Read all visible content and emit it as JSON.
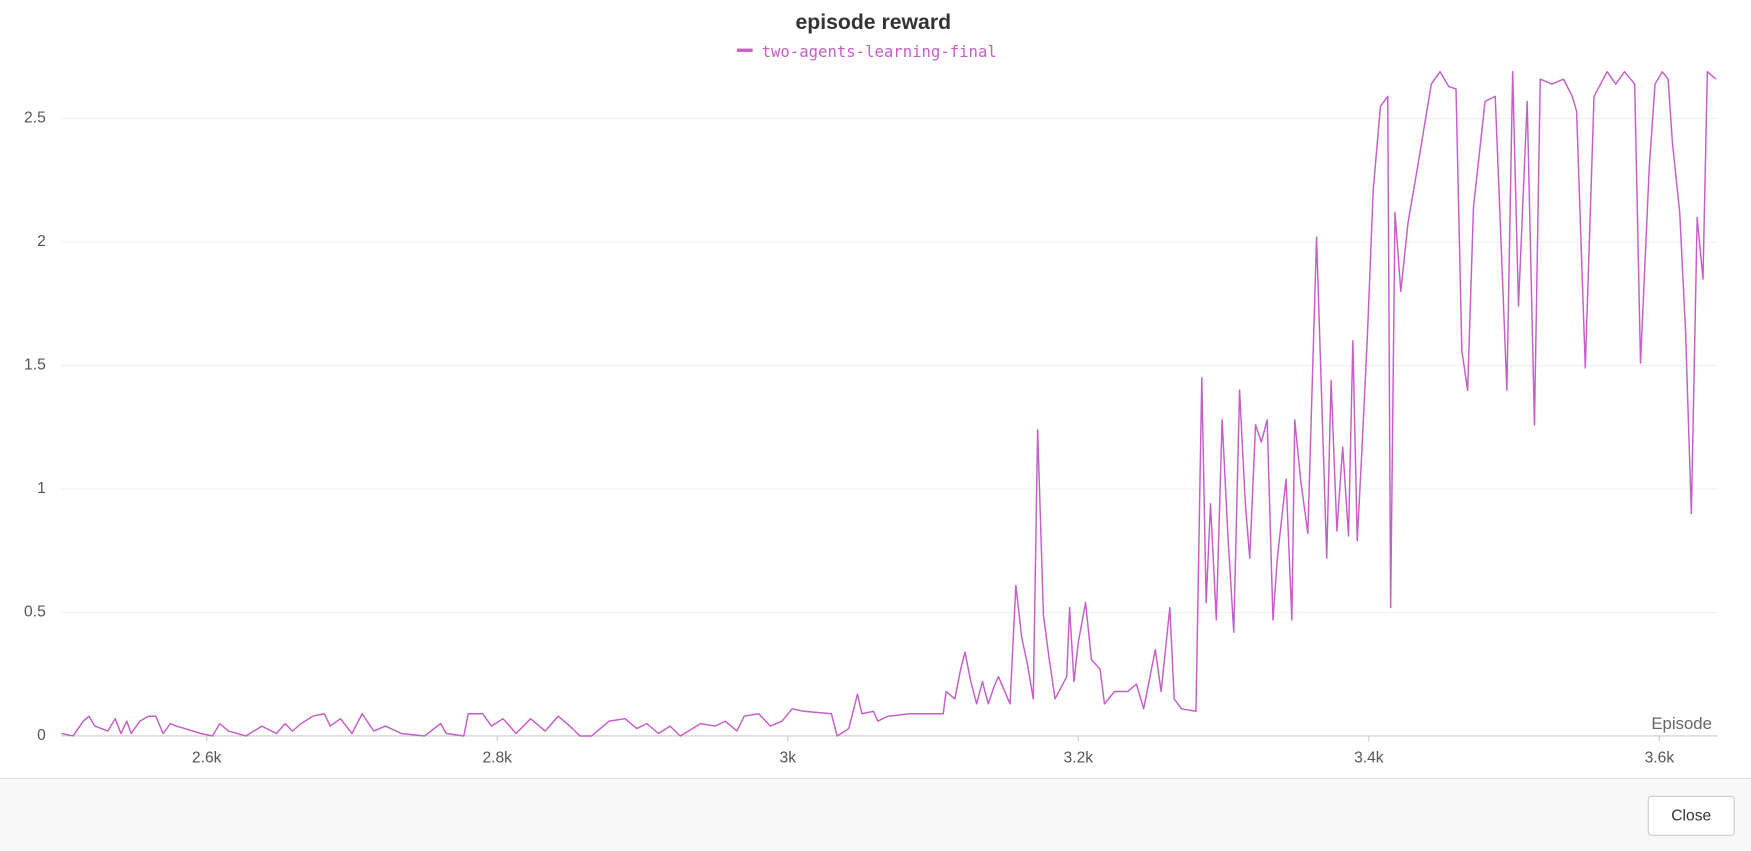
{
  "chart_data": {
    "type": "line",
    "title": "episode reward",
    "xlabel": "Episode",
    "x": [
      2500,
      2508,
      2515,
      2519,
      2523,
      2532,
      2537,
      2541,
      2545,
      2548,
      2554,
      2560,
      2565,
      2570,
      2575,
      2579,
      2585,
      2596,
      2604,
      2609,
      2615,
      2627,
      2638,
      2648,
      2654,
      2659,
      2665,
      2673,
      2681,
      2685,
      2692,
      2700,
      2707,
      2715,
      2723,
      2734,
      2750,
      2761,
      2765,
      2777,
      2780,
      2790,
      2796,
      2804,
      2813,
      2823,
      2833,
      2842,
      2850,
      2857,
      2865,
      2877,
      2888,
      2896,
      2903,
      2911,
      2919,
      2926,
      2940,
      2950,
      2957,
      2965,
      2970,
      2980,
      2988,
      2996,
      3003,
      3011,
      3030,
      3034,
      3042,
      3048,
      3051,
      3059,
      3062,
      3069,
      3084,
      3092,
      3107,
      3109,
      3115,
      3119,
      3122,
      3126,
      3130,
      3134,
      3138,
      3142,
      3145,
      3153,
      3157,
      3161,
      3165,
      3169,
      3172,
      3176,
      3180,
      3184,
      3192,
      3194,
      3197,
      3200,
      3205,
      3209,
      3215,
      3218,
      3225,
      3234,
      3240,
      3245,
      3253,
      3257,
      3263,
      3266,
      3271,
      3281,
      3285,
      3288,
      3291,
      3295,
      3299,
      3303,
      3307,
      3311,
      3315,
      3318,
      3322,
      3326,
      3330,
      3334,
      3337,
      3343,
      3347,
      3349,
      3353,
      3358,
      3364,
      3371,
      3374,
      3378,
      3382,
      3386,
      3389,
      3392,
      3395,
      3399,
      3403,
      3408,
      3413,
      3415,
      3418,
      3422,
      3427,
      3434,
      3443,
      3449,
      3455,
      3460,
      3464,
      3468,
      3472,
      3480,
      3487,
      3491,
      3495,
      3499,
      3503,
      3509,
      3514,
      3518,
      3526,
      3534,
      3540,
      3543,
      3549,
      3555,
      3564,
      3570,
      3576,
      3583,
      3587,
      3593,
      3597,
      3602,
      3606,
      3609,
      3614,
      3618,
      3622,
      3626,
      3630,
      3633,
      3639
    ],
    "series": [
      {
        "name": "two-agents-learning-final",
        "color": "#c75dc9",
        "values": [
          0.01,
          0,
          0.06,
          0.08,
          0.04,
          0.02,
          0.07,
          0.01,
          0.06,
          0.01,
          0.06,
          0.08,
          0.08,
          0.01,
          0.05,
          0.04,
          0.03,
          0.01,
          0,
          0.05,
          0.02,
          0,
          0.04,
          0.01,
          0.05,
          0.02,
          0.05,
          0.08,
          0.09,
          0.04,
          0.07,
          0.01,
          0.09,
          0.02,
          0.04,
          0.01,
          0,
          0.05,
          0.01,
          0,
          0.09,
          0.09,
          0.04,
          0.07,
          0.01,
          0.07,
          0.02,
          0.08,
          0.04,
          0,
          0,
          0.06,
          0.07,
          0.03,
          0.05,
          0.01,
          0.04,
          0,
          0.05,
          0.04,
          0.06,
          0.02,
          0.08,
          0.09,
          0.04,
          0.06,
          0.11,
          0.1,
          0.09,
          0,
          0.03,
          0.17,
          0.09,
          0.1,
          0.06,
          0.08,
          0.09,
          0.09,
          0.09,
          0.18,
          0.15,
          0.27,
          0.34,
          0.22,
          0.13,
          0.22,
          0.13,
          0.2,
          0.24,
          0.13,
          0.61,
          0.4,
          0.29,
          0.15,
          1.24,
          0.49,
          0.31,
          0.15,
          0.24,
          0.52,
          0.22,
          0.38,
          0.54,
          0.31,
          0.27,
          0.13,
          0.18,
          0.18,
          0.21,
          0.11,
          0.35,
          0.18,
          0.52,
          0.15,
          0.11,
          0.1,
          1.45,
          0.54,
          0.94,
          0.47,
          1.28,
          0.81,
          0.42,
          1.4,
          0.94,
          0.72,
          1.26,
          1.19,
          1.28,
          0.47,
          0.72,
          1.04,
          0.47,
          1.28,
          1.04,
          0.82,
          2.02,
          0.72,
          1.44,
          0.83,
          1.17,
          0.81,
          1.6,
          0.79,
          1.13,
          1.62,
          2.21,
          2.55,
          2.59,
          0.52,
          2.12,
          1.8,
          2.08,
          2.32,
          2.64,
          2.69,
          2.63,
          2.62,
          1.56,
          1.4,
          2.14,
          2.57,
          2.59,
          2.0,
          1.4,
          2.69,
          1.74,
          2.57,
          1.26,
          2.66,
          2.64,
          2.66,
          2.59,
          2.53,
          1.49,
          2.59,
          2.69,
          2.64,
          2.69,
          2.64,
          1.51,
          2.3,
          2.64,
          2.69,
          2.66,
          2.4,
          2.12,
          1.64,
          0.9,
          2.1,
          1.85,
          2.69,
          2.66
        ]
      }
    ],
    "xlim": [
      2500,
      3640
    ],
    "ylim": [
      0,
      2.7
    ],
    "xticks": [
      {
        "value": 2600,
        "label": "2.6k"
      },
      {
        "value": 2800,
        "label": "2.8k"
      },
      {
        "value": 3000,
        "label": "3k"
      },
      {
        "value": 3200,
        "label": "3.2k"
      },
      {
        "value": 3400,
        "label": "3.4k"
      },
      {
        "value": 3600,
        "label": "3.6k"
      }
    ],
    "yticks": [
      0,
      0.5,
      1,
      1.5,
      2,
      2.5
    ],
    "grid": true
  },
  "close_button": "Close"
}
